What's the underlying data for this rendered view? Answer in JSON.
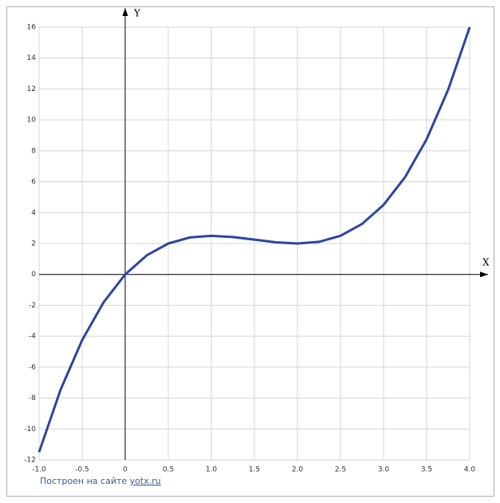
{
  "chart_data": {
    "type": "line",
    "x_label": "X",
    "y_label": "Y",
    "x": [
      -1,
      -0.75,
      -0.5,
      -0.25,
      0,
      0.25,
      0.5,
      0.75,
      1,
      1.25,
      1.5,
      1.75,
      2,
      2.25,
      2.5,
      2.75,
      3,
      3.25,
      3.5,
      3.75,
      4
    ],
    "series": [
      {
        "color": "#2b45a3",
        "values": [
          -11.5,
          -7.453,
          -4.25,
          -1.797,
          0,
          1.234,
          2,
          2.391,
          2.5,
          2.422,
          2.25,
          2.078,
          2,
          2.109,
          2.5,
          3.266,
          4.5,
          6.297,
          8.75,
          11.953,
          16
        ]
      }
    ],
    "xlim": [
      -1,
      4
    ],
    "ylim": [
      -12,
      16
    ],
    "xticks": [
      {
        "value": -1,
        "label": "-1.0"
      },
      -0.5,
      0,
      0.5,
      {
        "value": 1,
        "label": "1.0"
      },
      1.5,
      {
        "value": 2,
        "label": "2.0"
      },
      2.5,
      {
        "value": 3,
        "label": "3.0"
      },
      3.5,
      {
        "value": 4,
        "label": "4.0"
      }
    ],
    "yticks": [
      -12,
      -10,
      -8,
      -6,
      -4,
      -2,
      0,
      2,
      4,
      6,
      8,
      10,
      12,
      14,
      16
    ],
    "grid": true
  },
  "footer": {
    "text": "Построен на сайте",
    "link": "yotx.ru"
  }
}
